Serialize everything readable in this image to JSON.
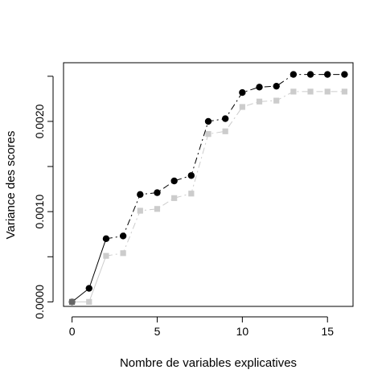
{
  "chart_data": {
    "type": "line",
    "title": "",
    "xlabel": "Nombre de variables explicatives",
    "ylabel": "Variance des scores",
    "xlim": [
      -0.5,
      16.5
    ],
    "ylim": [
      -5e-05,
      0.00265
    ],
    "x_ticks": [
      0,
      5,
      10,
      15
    ],
    "x_tick_labels": [
      "0",
      "5",
      "10",
      "15"
    ],
    "y_ticks": [
      0,
      0.0005,
      0.001,
      0.0015,
      0.002,
      0.0025
    ],
    "y_tick_labels": [
      "0.0000",
      "",
      "0.0010",
      "",
      "0.0020",
      ""
    ],
    "grid": false,
    "legend": "none",
    "x": [
      0,
      1,
      2,
      3,
      4,
      5,
      6,
      7,
      8,
      9,
      10,
      11,
      12,
      13,
      14,
      15,
      16
    ],
    "series": [
      {
        "marker": "circle",
        "line": "solid-then-dashdot",
        "color": "#000000",
        "values": [
          0.0,
          0.00015,
          0.0007,
          0.00073,
          0.00119,
          0.00121,
          0.00134,
          0.0014,
          0.002,
          0.00203,
          0.00232,
          0.00238,
          0.00239,
          0.00252,
          0.00252,
          0.00252,
          0.00252
        ]
      },
      {
        "marker": "square",
        "line": "solid-then-dashdot",
        "color": "#cccccc",
        "values": [
          0.0,
          0.0,
          0.00051,
          0.00054,
          0.00101,
          0.00103,
          0.00115,
          0.0012,
          0.00186,
          0.00189,
          0.00216,
          0.00222,
          0.00223,
          0.00233,
          0.00233,
          0.00233,
          0.00233
        ]
      }
    ],
    "origin_point_color": "#666666"
  }
}
